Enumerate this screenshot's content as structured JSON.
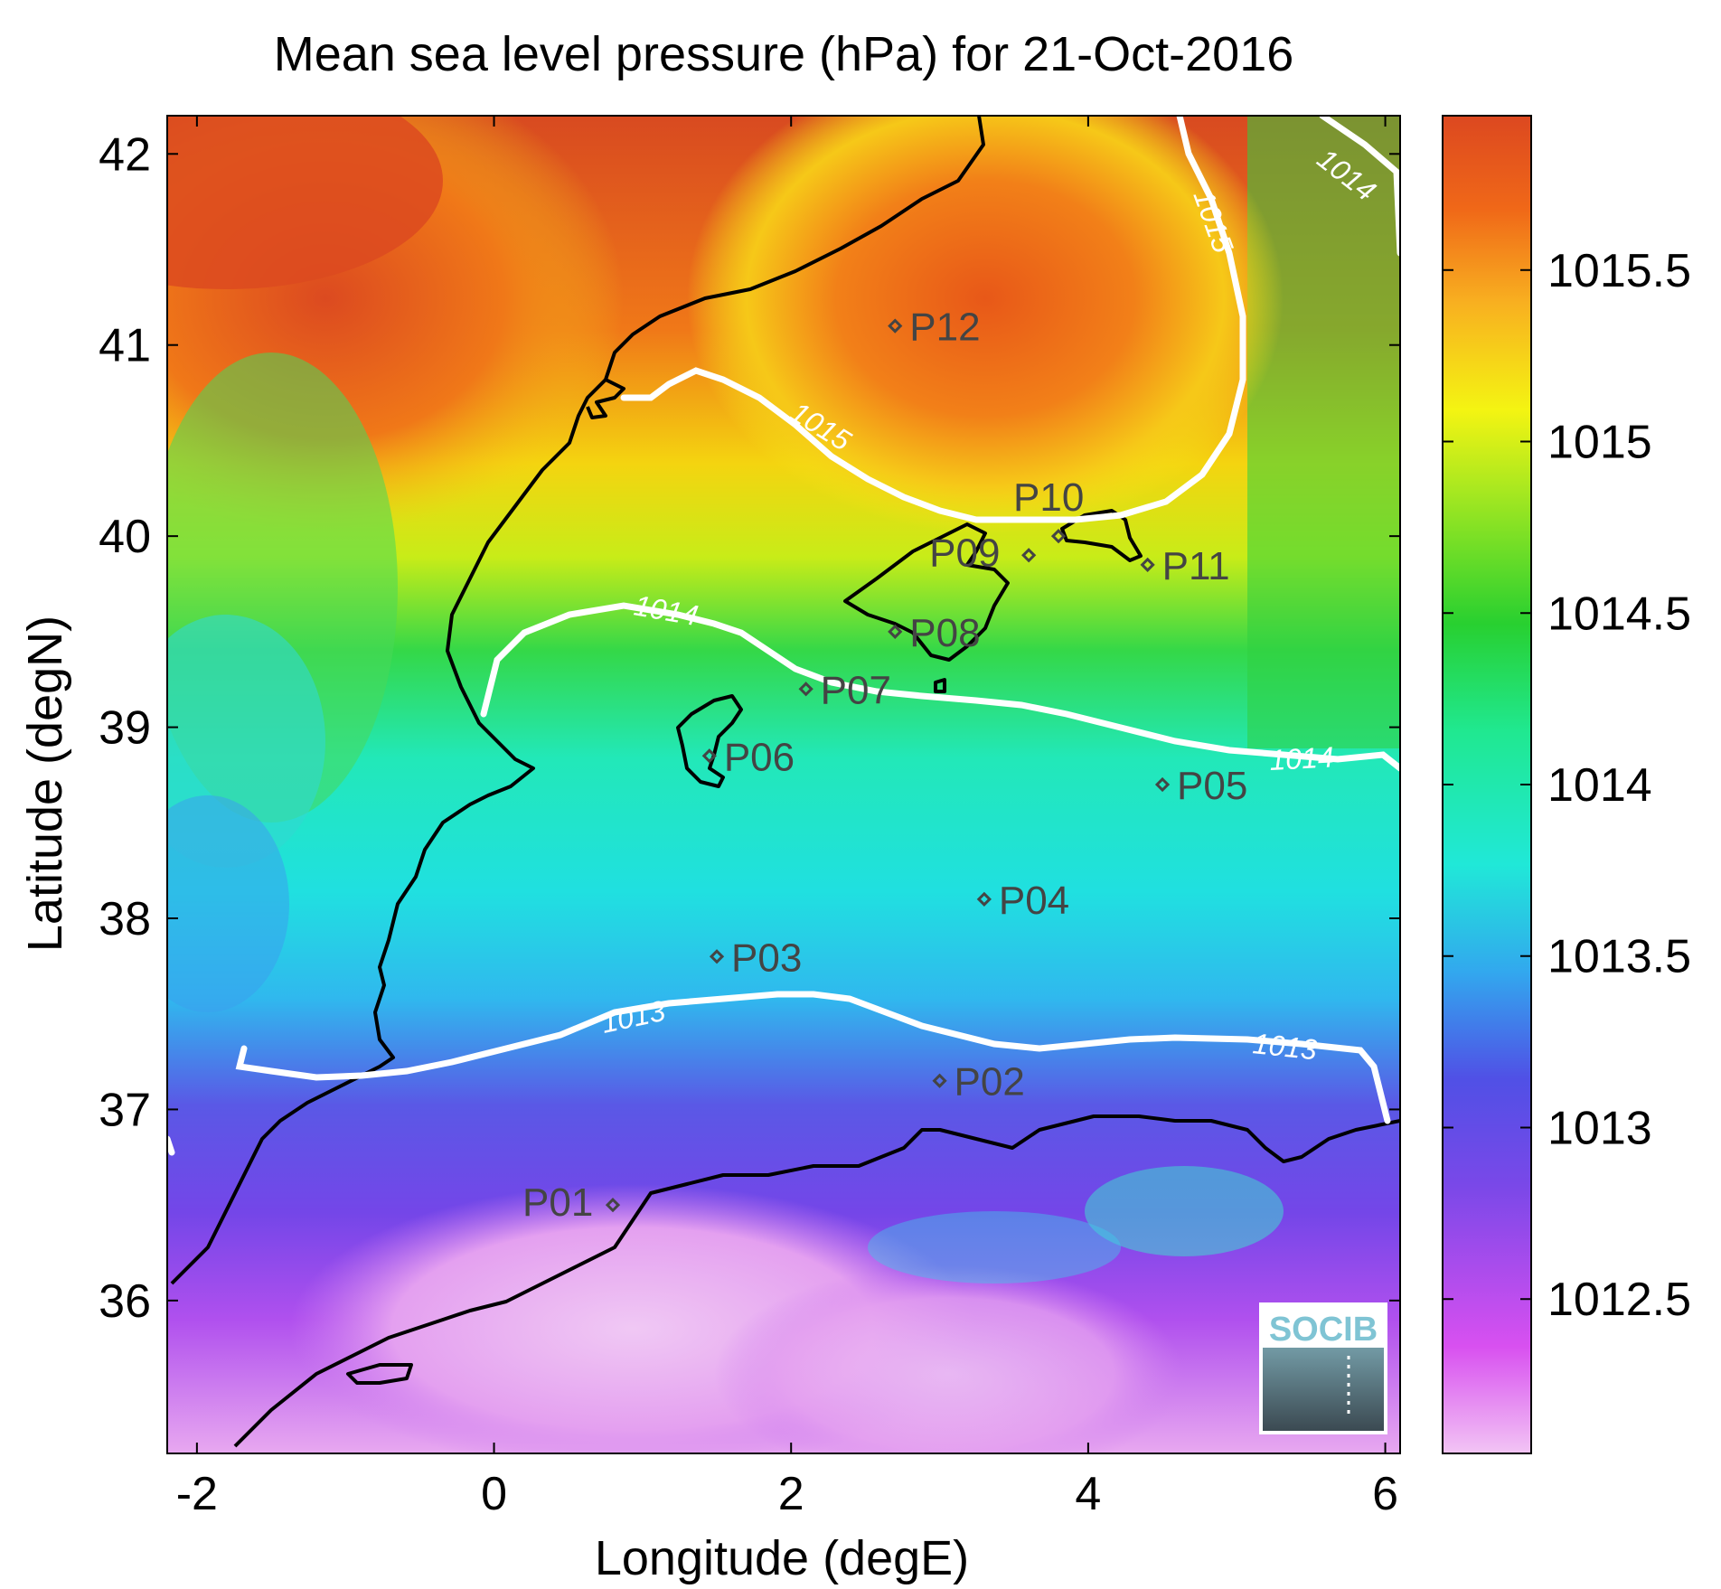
{
  "title": "Mean sea level pressure (hPa) for 21-Oct-2016",
  "xlabel": "Longitude (degE)",
  "ylabel": "Latitude (degN)",
  "x_ticks": [
    "-2",
    "0",
    "2",
    "4",
    "6"
  ],
  "y_ticks": [
    "42",
    "41",
    "40",
    "39",
    "38",
    "37",
    "36"
  ],
  "colorbar": {
    "ticks": [
      "1015.5",
      "1015",
      "1014.5",
      "1014",
      "1013.5",
      "1013",
      "1012.5"
    ],
    "range": [
      1012.05,
      1015.95
    ]
  },
  "logo": {
    "text": "SOCIB"
  },
  "contours": [
    {
      "label": "1015"
    },
    {
      "label": "1015"
    },
    {
      "label": "1014"
    },
    {
      "label": "1014"
    },
    {
      "label": "1014"
    },
    {
      "label": "1013"
    },
    {
      "label": "1013"
    }
  ],
  "stations": [
    {
      "name": "P01",
      "lon": 0.8,
      "lat": 36.5
    },
    {
      "name": "P02",
      "lon": 3.0,
      "lat": 37.15
    },
    {
      "name": "P03",
      "lon": 1.5,
      "lat": 37.8
    },
    {
      "name": "P04",
      "lon": 3.3,
      "lat": 38.1
    },
    {
      "name": "P05",
      "lon": 4.5,
      "lat": 38.7
    },
    {
      "name": "P06",
      "lon": 1.45,
      "lat": 38.85
    },
    {
      "name": "P07",
      "lon": 2.1,
      "lat": 39.2
    },
    {
      "name": "P08",
      "lon": 2.7,
      "lat": 39.5
    },
    {
      "name": "P09",
      "lon": 3.6,
      "lat": 39.9
    },
    {
      "name": "P10",
      "lon": 3.8,
      "lat": 40.0
    },
    {
      "name": "P11",
      "lon": 4.4,
      "lat": 39.85
    },
    {
      "name": "P12",
      "lon": 2.7,
      "lat": 41.1
    }
  ],
  "colors": {
    "contour": "#ffffff",
    "coast": "#000000",
    "station": "#444444",
    "logo_text": "#7fc4d4"
  }
}
